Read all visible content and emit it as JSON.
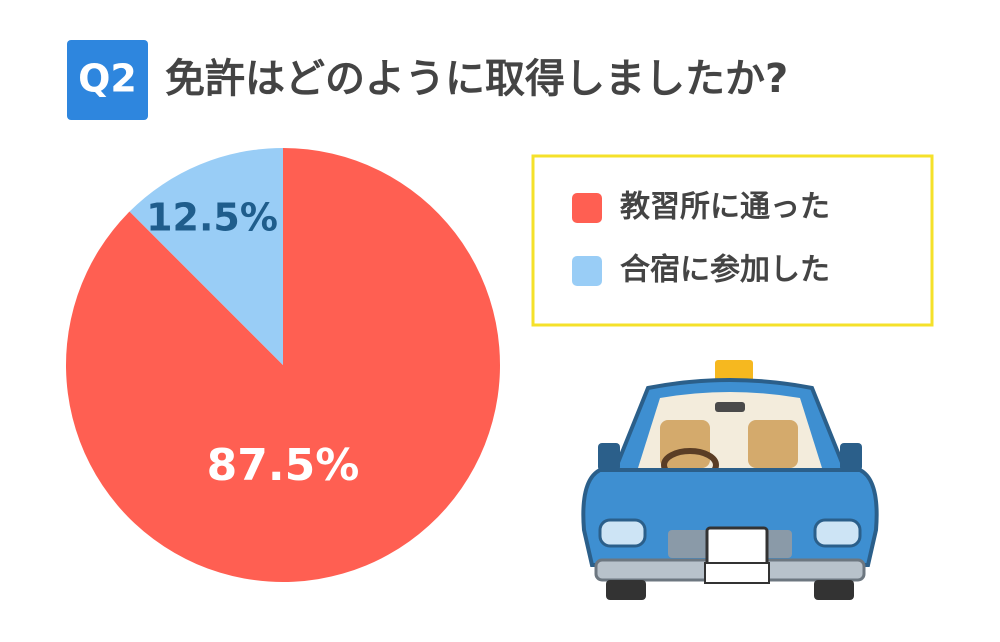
{
  "chart_data": {
    "type": "pie",
    "badge": "Q2",
    "title": "免許はどのように取得しましたか?",
    "categories": [
      "教習所に通った",
      "合宿に参加した"
    ],
    "values": [
      87.5,
      12.5
    ],
    "value_labels": [
      "87.5%",
      "12.5%"
    ],
    "colors": [
      "#ff5f52",
      "#99cdf6"
    ],
    "label_colors": [
      "#ffffff",
      "#1f5d8c"
    ],
    "legend": "upper right"
  }
}
